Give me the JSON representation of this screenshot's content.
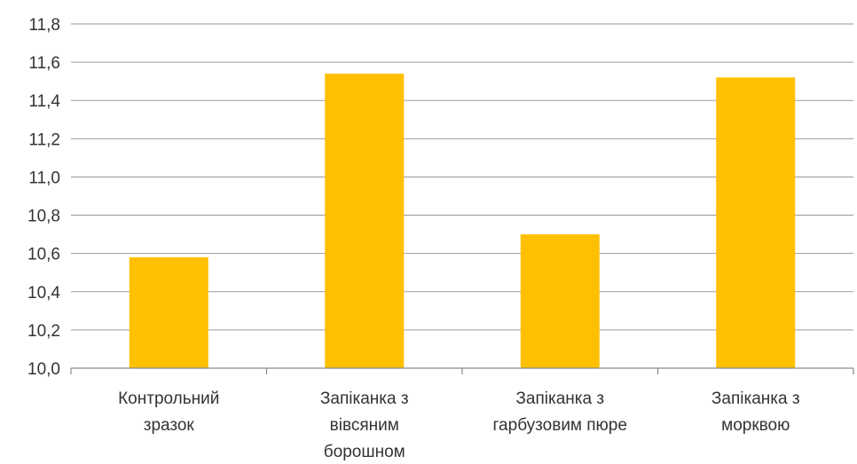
{
  "chart_data": {
    "type": "bar",
    "title": "",
    "xlabel": "",
    "ylabel": "",
    "categories": [
      [
        "Контрольний",
        "зразок"
      ],
      [
        "Запіканка з",
        "вівсяним",
        "борошном"
      ],
      [
        "Запіканка з",
        "гарбузовим пюре"
      ],
      [
        "Запіканка з",
        "морквою"
      ]
    ],
    "values": [
      10.58,
      11.54,
      10.7,
      11.52
    ],
    "ylim": [
      10.0,
      11.8
    ],
    "yticks": [
      "10,0",
      "10,2",
      "10,4",
      "10,6",
      "10,8",
      "11,0",
      "11,2",
      "11,4",
      "11,6",
      "11,8"
    ],
    "bar_color": "#FFC000",
    "grid": true,
    "legend": "none"
  }
}
